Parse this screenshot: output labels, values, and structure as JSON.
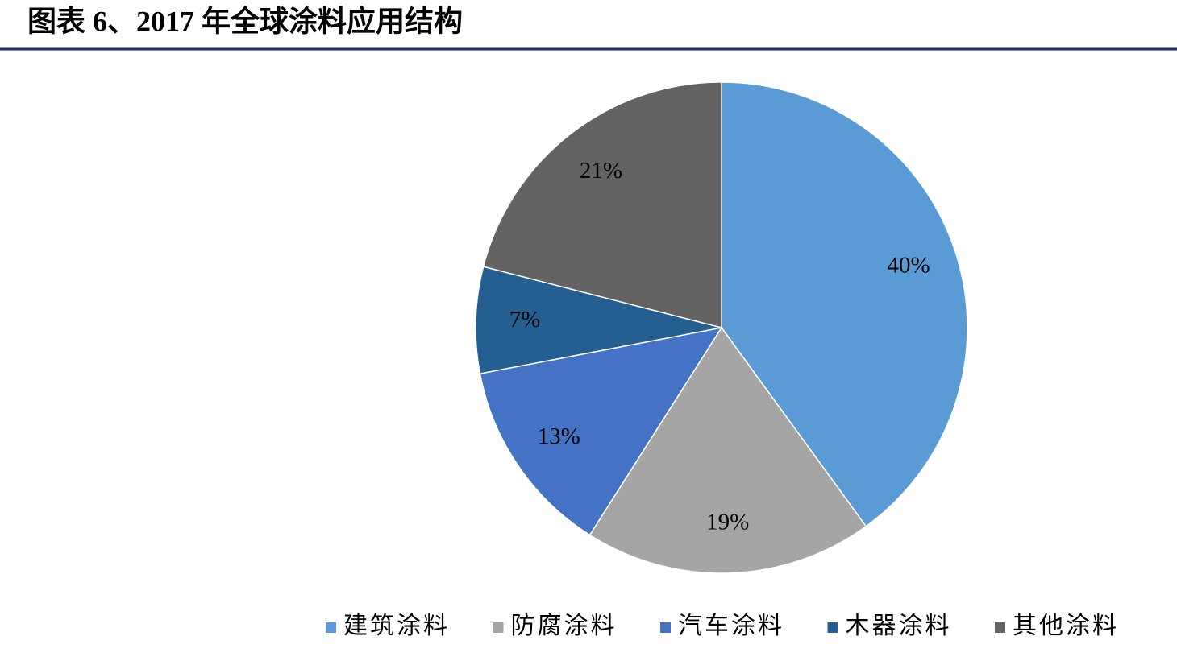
{
  "chart_data": {
    "type": "pie",
    "title": "图表 6、2017 年全球涂料应用结构",
    "categories": [
      "建筑涂料",
      "防腐涂料",
      "汽车涂料",
      "木器涂料",
      "其他涂料"
    ],
    "values": [
      40,
      19,
      13,
      7,
      21
    ],
    "value_labels": [
      "40%",
      "19%",
      "13%",
      "7%",
      "21%"
    ],
    "colors": [
      "#5b9bd5",
      "#a5a5a5",
      "#4472c4",
      "#255e91",
      "#636363"
    ],
    "legend": "bottom"
  }
}
